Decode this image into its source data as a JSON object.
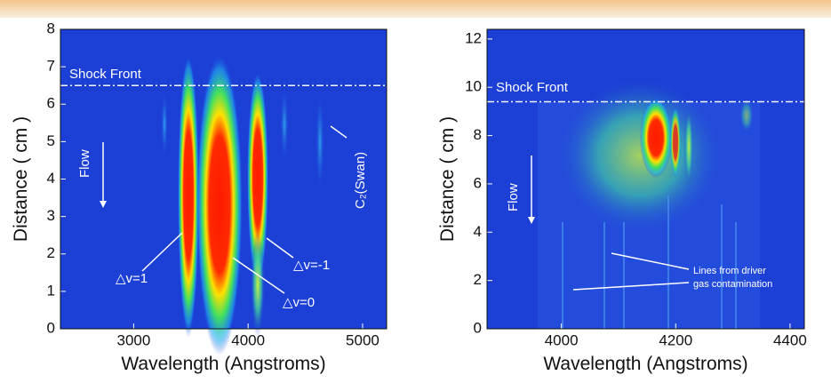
{
  "chart_data": [
    {
      "type": "heatmap",
      "x_label": "Wavelength (Angstroms)",
      "y_label": "Distance ( cm )",
      "xlim": [
        2360,
        5210
      ],
      "xticks": [
        3000,
        4000,
        5000
      ],
      "ylim": [
        0,
        8
      ],
      "yticks": [
        0,
        1,
        2,
        3,
        4,
        5,
        6,
        7,
        8
      ],
      "shock_front": 6.5,
      "annotations": [
        "Shock Front",
        "Flow",
        "△v=1",
        "△v=0",
        "△v=-1",
        "C₂(Swan)"
      ]
    },
    {
      "type": "heatmap",
      "x_label": "Wavelength (Angstroms)",
      "y_label": "Distance ( cm )",
      "xlim": [
        3870,
        4425
      ],
      "xticks": [
        4000,
        4200,
        4400
      ],
      "ylim": [
        0,
        12.4
      ],
      "yticks": [
        0,
        2,
        4,
        6,
        8,
        10,
        12
      ],
      "shock_front": 9.4,
      "annotations": [
        "Shock Front",
        "Flow",
        "Lines from driver",
        "gas contamination"
      ]
    }
  ]
}
